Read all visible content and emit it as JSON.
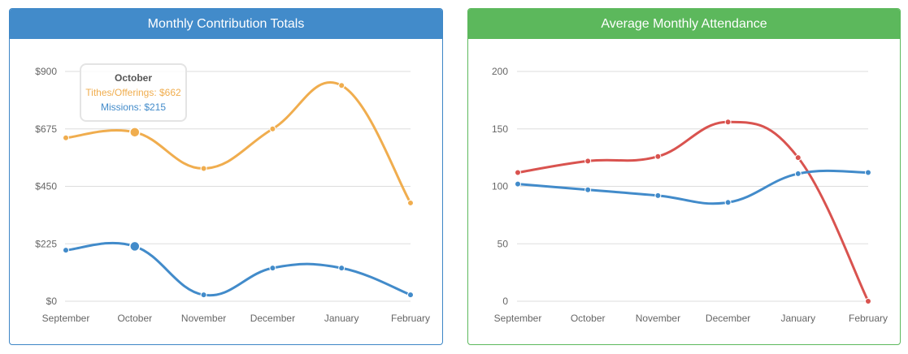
{
  "panels": {
    "contributions": {
      "title": "Monthly Contribution Totals"
    },
    "attendance": {
      "title": "Average Monthly Attendance"
    }
  },
  "tooltip": {
    "title": "October",
    "rows": [
      {
        "label": "Tithes/Offerings: $662",
        "color": "#f0ad4e"
      },
      {
        "label": "Missions: $215",
        "color": "#428bca"
      }
    ]
  },
  "chart_data": [
    {
      "type": "line",
      "title": "Monthly Contribution Totals",
      "categories": [
        "September",
        "October",
        "November",
        "December",
        "January",
        "February"
      ],
      "y_ticks": [
        "$0",
        "$225",
        "$450",
        "$675",
        "$900"
      ],
      "ylim": [
        0,
        900
      ],
      "grid": true,
      "series": [
        {
          "name": "Tithes/Offerings",
          "color": "#f0ad4e",
          "values": [
            640,
            662,
            520,
            675,
            845,
            385
          ]
        },
        {
          "name": "Missions",
          "color": "#428bca",
          "values": [
            200,
            215,
            25,
            130,
            130,
            25
          ]
        }
      ],
      "highlight_index": 1
    },
    {
      "type": "line",
      "title": "Average Monthly Attendance",
      "categories": [
        "September",
        "October",
        "November",
        "December",
        "January",
        "February"
      ],
      "y_ticks": [
        "0",
        "50",
        "100",
        "150",
        "200"
      ],
      "ylim": [
        0,
        200
      ],
      "grid": true,
      "series": [
        {
          "color": "#d9534f",
          "values": [
            112,
            122,
            126,
            156,
            125,
            0
          ]
        },
        {
          "color": "#428bca",
          "values": [
            102,
            97,
            92,
            86,
            111,
            112
          ]
        }
      ]
    }
  ]
}
